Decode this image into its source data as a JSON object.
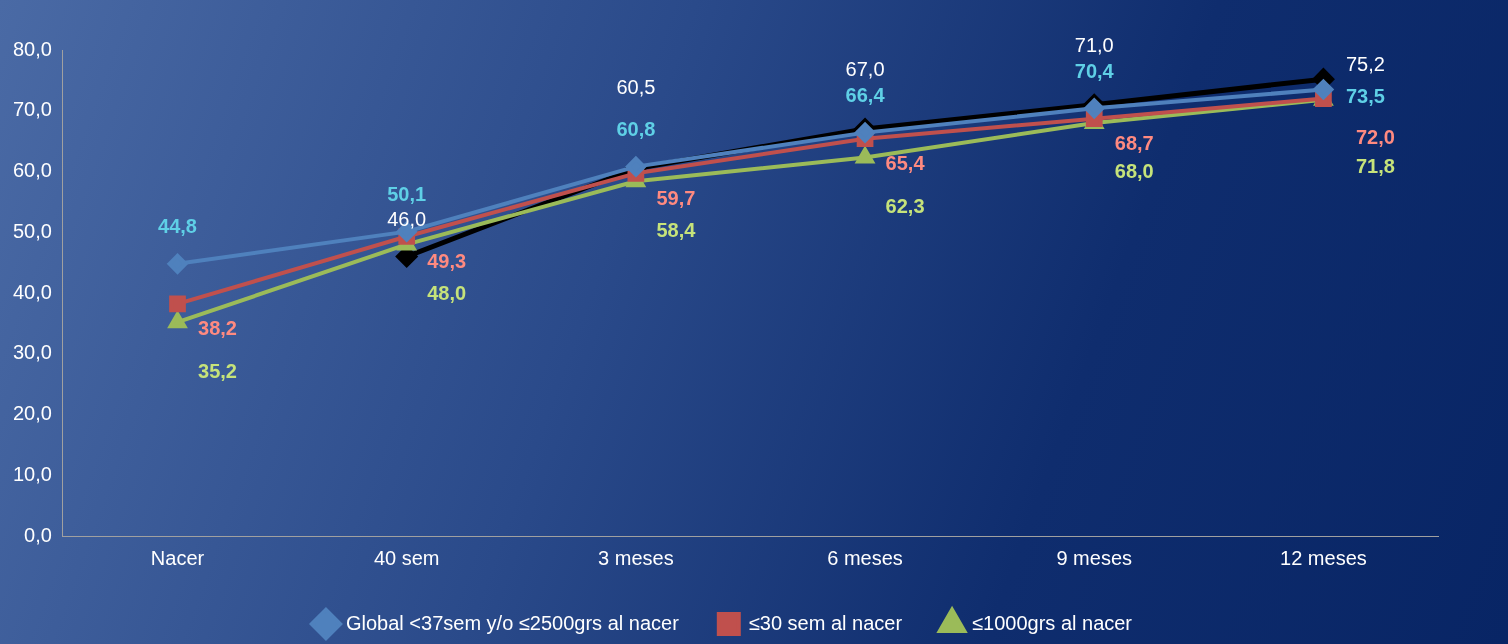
{
  "chart_data": {
    "type": "line",
    "categories": [
      "Nacer",
      "40 sem",
      "3 meses",
      "6 meses",
      "9 meses",
      "12 meses"
    ],
    "ylim": [
      0,
      80
    ],
    "yticks": [
      {
        "value": 0,
        "label": "0,0"
      },
      {
        "value": 10,
        "label": "10,0"
      },
      {
        "value": 20,
        "label": "20,0"
      },
      {
        "value": 30,
        "label": "30,0"
      },
      {
        "value": 40,
        "label": "40,0"
      },
      {
        "value": 50,
        "label": "50,0"
      },
      {
        "value": 60,
        "label": "60,0"
      },
      {
        "value": 70,
        "label": "70,0"
      },
      {
        "value": 80,
        "label": "80,0"
      }
    ],
    "grid": false,
    "legend": "bottom",
    "series": [
      {
        "name": "Global <37sem y/o ≤2500grs al nacer",
        "color": "#4f81bd",
        "marker": "diamond",
        "values": [
          44.8,
          50.1,
          60.8,
          66.4,
          70.4,
          73.5
        ],
        "value_labels": [
          "44,8",
          "50,1",
          "60,8",
          "66,4",
          "70,4",
          "73,5"
        ]
      },
      {
        "name": "≤30 sem al nacer",
        "color": "#c0504d",
        "marker": "square",
        "values": [
          38.2,
          49.3,
          59.7,
          65.4,
          68.7,
          72.0
        ],
        "value_labels": [
          "38,2",
          "49,3",
          "59,7",
          "65,4",
          "68,7",
          "72,0"
        ]
      },
      {
        "name": "≤1000grs al nacer",
        "color": "#9bbb59",
        "marker": "triangle",
        "values": [
          35.2,
          48.0,
          58.4,
          62.3,
          68.0,
          71.8
        ],
        "value_labels": [
          "35,2",
          "48,0",
          "58,4",
          "62,3",
          "68,0",
          "71,8"
        ]
      },
      {
        "color": "#000000",
        "marker": "diamond",
        "values": [
          null,
          46.0,
          60.5,
          67.0,
          71.0,
          75.2
        ],
        "value_labels": [
          null,
          "46,0",
          "60,5",
          "67,0",
          "71,0",
          "75,2"
        ]
      }
    ]
  }
}
